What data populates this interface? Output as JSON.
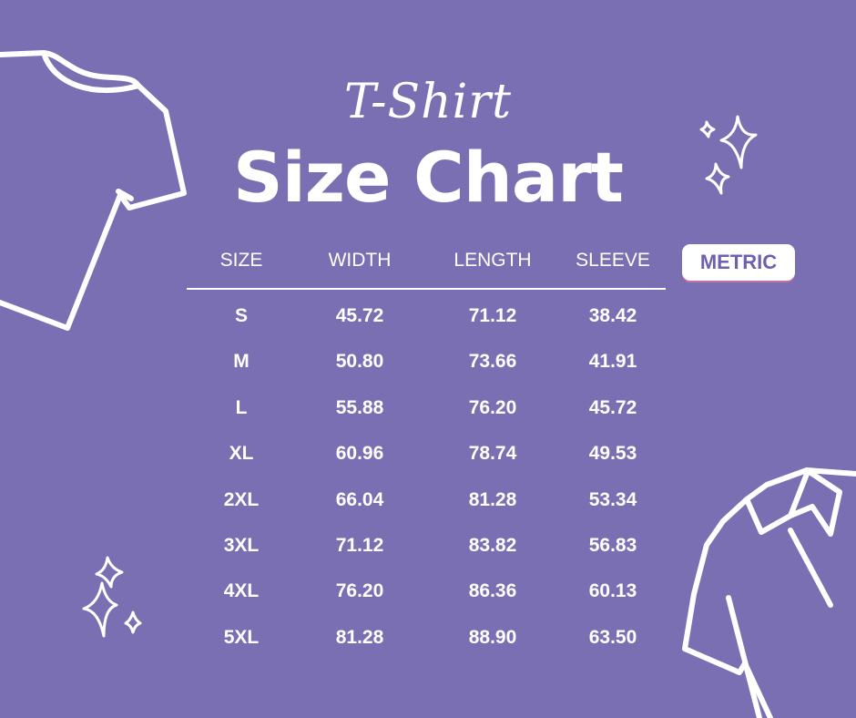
{
  "script_title": "T-Shirt",
  "main_title": "Size Chart",
  "unit_toggle": {
    "label": "METRIC"
  },
  "table": {
    "headers": [
      "SIZE",
      "WIDTH",
      "LENGTH",
      "SLEEVE"
    ],
    "rows": [
      [
        "S",
        "45.72",
        "71.12",
        "38.42"
      ],
      [
        "M",
        "50.80",
        "73.66",
        "41.91"
      ],
      [
        "L",
        "55.88",
        "76.20",
        "45.72"
      ],
      [
        "XL",
        "60.96",
        "78.74",
        "49.53"
      ],
      [
        "2XL",
        "66.04",
        "81.28",
        "53.34"
      ],
      [
        "3XL",
        "71.12",
        "83.82",
        "56.83"
      ],
      [
        "4XL",
        "76.20",
        "86.36",
        "60.13"
      ],
      [
        "5XL",
        "81.28",
        "88.90",
        "63.50"
      ]
    ]
  },
  "colors": {
    "background": "#7B6FB3",
    "text": "#ffffff",
    "badge_text": "#6E5FAF"
  },
  "icons": [
    "tshirt-icon",
    "polo-shirt-icon",
    "sparkle-icon"
  ]
}
